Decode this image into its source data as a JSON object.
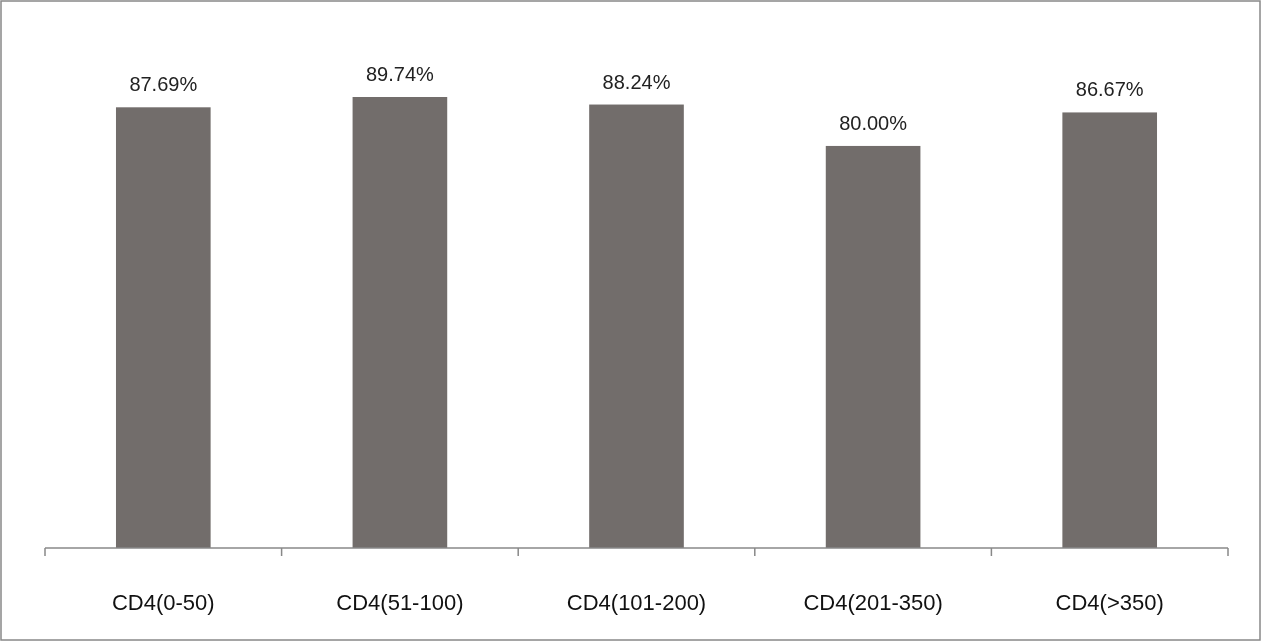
{
  "chart_data": {
    "type": "bar",
    "categories": [
      "CD4(0-50)",
      "CD4(51-100)",
      "CD4(101-200)",
      "CD4(201-350)",
      "CD4(>350)"
    ],
    "values": [
      87.69,
      89.74,
      88.24,
      80.0,
      86.67
    ],
    "value_labels": [
      "87.69%",
      "89.74%",
      "88.24%",
      "80.00%",
      "86.67%"
    ],
    "color": "#726d6b"
  }
}
